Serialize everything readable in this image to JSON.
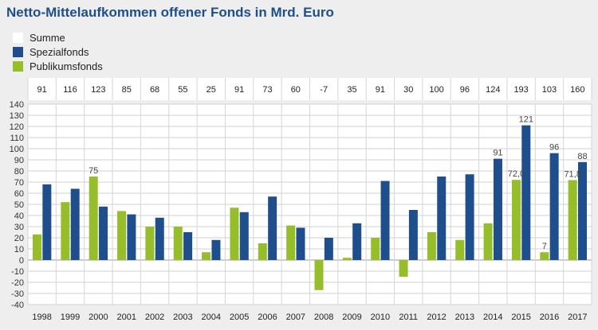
{
  "chart_data": {
    "type": "bar",
    "title": "Netto-Mittelaufkommen offener Fonds in Mrd. Euro",
    "categories": [
      "1998",
      "1999",
      "2000",
      "2001",
      "2002",
      "2003",
      "2004",
      "2005",
      "2006",
      "2007",
      "2008",
      "2009",
      "2010",
      "2011",
      "2012",
      "2013",
      "2014",
      "2015",
      "2016",
      "2017"
    ],
    "sum_row": {
      "name": "Summe",
      "values": [
        "91",
        "116",
        "123",
        "85",
        "68",
        "55",
        "25",
        "91",
        "73",
        "60",
        "-7",
        "35",
        "91",
        "30",
        "100",
        "96",
        "124",
        "193",
        "103",
        "160"
      ]
    },
    "series": [
      {
        "name": "Spezialfonds",
        "color": "#1f4e8c",
        "values": [
          68,
          64,
          48,
          41,
          38,
          25,
          18,
          43,
          57,
          29,
          20,
          33,
          71,
          45,
          75,
          77,
          91,
          121,
          96,
          88
        ]
      },
      {
        "name": "Publikumsfonds",
        "color": "#96be2a",
        "values": [
          23,
          52,
          75,
          44,
          30,
          30,
          7,
          47,
          15,
          31,
          -27,
          2,
          20,
          -15,
          25,
          18,
          33,
          72,
          7,
          71.8
        ]
      }
    ],
    "data_labels": [
      {
        "series": 1,
        "index": 2,
        "text": "75"
      },
      {
        "series": 0,
        "index": 16,
        "text": "91"
      },
      {
        "series": 0,
        "index": 17,
        "text": "121"
      },
      {
        "series": 1,
        "index": 17,
        "text": "72,0"
      },
      {
        "series": 0,
        "index": 18,
        "text": "96"
      },
      {
        "series": 1,
        "index": 18,
        "text": "7"
      },
      {
        "series": 0,
        "index": 19,
        "text": "88"
      },
      {
        "series": 1,
        "index": 19,
        "text": "71,8"
      }
    ],
    "yticks": [
      140,
      130,
      120,
      110,
      100,
      90,
      80,
      70,
      60,
      50,
      40,
      30,
      20,
      10,
      0,
      -10,
      -20,
      -30,
      -40
    ],
    "ylim": [
      -40,
      140
    ],
    "grid": true,
    "legend_position": "top-left",
    "legend": [
      "Summe",
      "Spezialfonds",
      "Publikumsfonds"
    ],
    "legend_colors": [
      "#ffffff",
      "#1f4e8c",
      "#96be2a"
    ]
  }
}
